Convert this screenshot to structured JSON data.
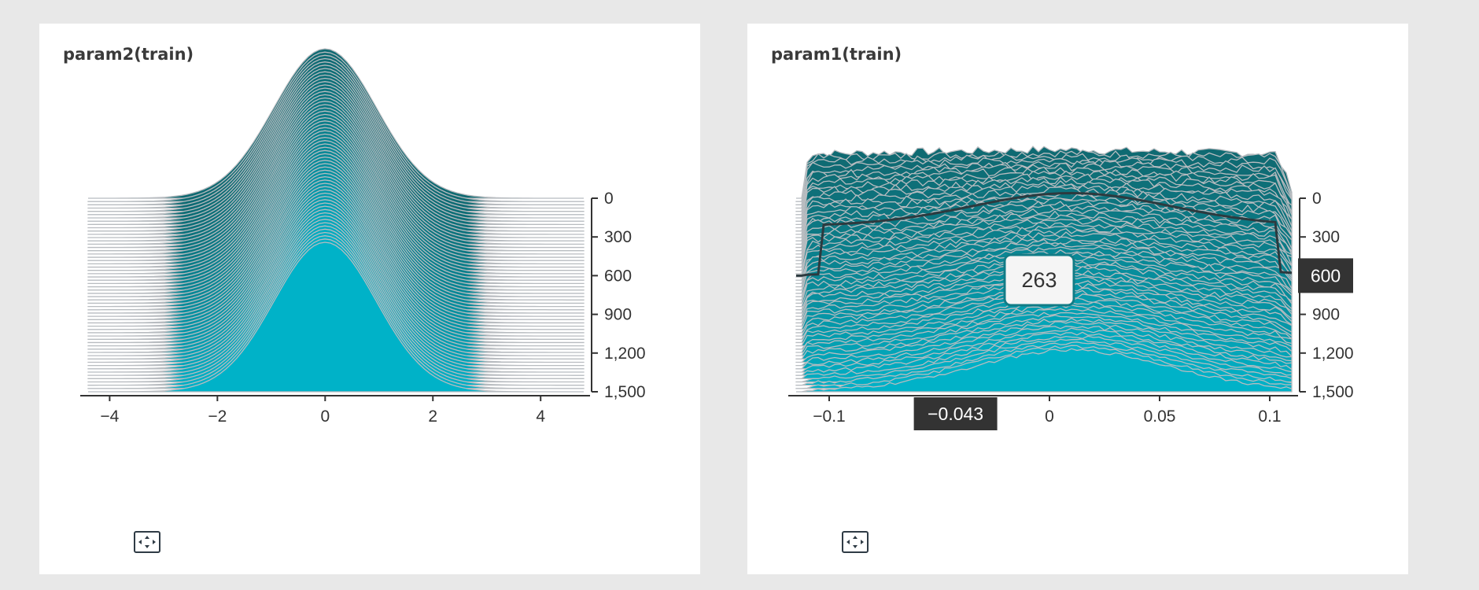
{
  "colors": {
    "fill_front": "#00b2c8",
    "fill_back": "#0f6a72",
    "ridge_line": "#b8bcc0",
    "axis": "#333333",
    "marker_bg": "#333333"
  },
  "cards": [
    {
      "title": "param2(train)",
      "expand_icon": "fit-screen-icon"
    },
    {
      "title": "param1(train)",
      "expand_icon": "fit-screen-icon"
    }
  ],
  "chart_data": [
    {
      "type": "area",
      "title": "param2(train)",
      "x_ticks": [
        "−4",
        "−2",
        "0",
        "2",
        "4"
      ],
      "x_tick_values": [
        -4,
        -2,
        0,
        2,
        4
      ],
      "xlim": [
        -4.4,
        4.8
      ],
      "y_ticks": [
        "0",
        "300",
        "600",
        "900",
        "1,200",
        "1,500"
      ],
      "y_tick_values": [
        0,
        300,
        600,
        900,
        1200,
        1500
      ],
      "ylim": [
        0,
        1500
      ],
      "distribution": {
        "shape": "gaussian",
        "mean": 0,
        "std": 0.95,
        "x_range": [
          -4.4,
          4.8
        ]
      },
      "peak_height_back": 1.0,
      "peak_height_front": 1.0,
      "num_steps": 60,
      "grid": false,
      "legend": "none"
    },
    {
      "type": "area",
      "title": "param1(train)",
      "x_ticks": [
        "−0.1",
        "0",
        "0.05",
        "0.1"
      ],
      "x_tick_values": [
        -0.1,
        0,
        0.05,
        0.1
      ],
      "xlim": [
        -0.115,
        0.11
      ],
      "y_ticks": [
        "0",
        "300",
        "600",
        "900",
        "1,200",
        "1,500"
      ],
      "y_tick_values": [
        0,
        300,
        600,
        900,
        1200,
        1500
      ],
      "ylim": [
        0,
        1500
      ],
      "distribution": {
        "shape": "plateau",
        "back_range": [
          -0.115,
          0.11
        ],
        "front_center": 0.0,
        "front_halfwidth": 0.075
      },
      "num_steps": 60,
      "grid": false,
      "legend": "none",
      "hover": {
        "step_label": "600",
        "step_value": 600,
        "x_label": "−0.043",
        "x_value": -0.043,
        "tooltip": "263"
      }
    }
  ]
}
